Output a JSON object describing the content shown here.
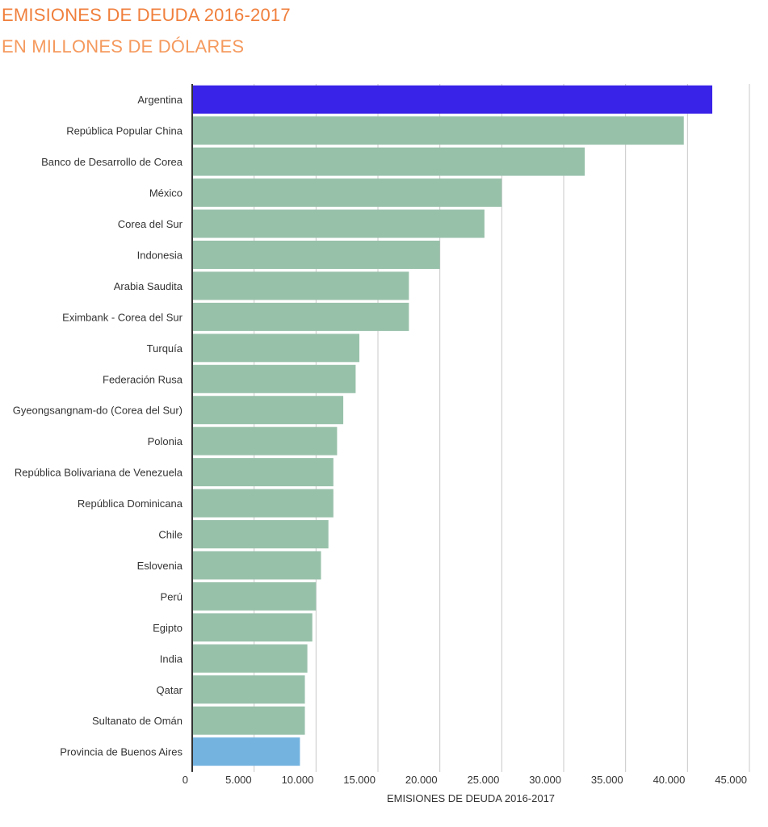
{
  "header": {
    "title": "EMISIONES DE DEUDA 2016-2017",
    "subtitle": "EN MILLONES DE DÓLARES"
  },
  "chart_data": {
    "type": "bar",
    "orientation": "horizontal",
    "title": "EMISIONES DE DEUDA 2016-2017",
    "subtitle": "EN MILLONES DE DÓLARES",
    "xlabel": "EMISIONES DE DEUDA 2016-2017",
    "ylabel": "",
    "xlim": [
      0,
      45000
    ],
    "grid": true,
    "ticks": [
      0,
      5000,
      10000,
      15000,
      20000,
      25000,
      30000,
      35000,
      40000,
      45000
    ],
    "tick_labels": [
      "0",
      "5.000",
      "10.000",
      "15.000",
      "20.000",
      "25.000",
      "30.000",
      "35.000",
      "40.000",
      "45.000"
    ],
    "categories": [
      "Argentina",
      "República Popular China",
      "Banco de Desarrollo de Corea",
      "México",
      "Corea del Sur",
      "Indonesia",
      "Arabia Saudita",
      "Eximbank - Corea del Sur",
      "Turquía",
      "Federación Rusa",
      "Gyeongsangnam-do (Corea del Sur)",
      "Polonia",
      "República Bolivariana de Venezuela",
      "República Dominicana",
      "Chile",
      "Eslovenia",
      "Perú",
      "Egipto",
      "India",
      "Qatar",
      "Sultanato de Omán",
      "Provincia de Buenos Aires"
    ],
    "values": [
      42000,
      39700,
      31700,
      25000,
      23600,
      20000,
      17500,
      17500,
      13500,
      13200,
      12200,
      11700,
      11400,
      11400,
      11000,
      10400,
      10000,
      9700,
      9300,
      9100,
      9100,
      8700
    ],
    "colors": {
      "default": "#98c1aa",
      "highlight_top": "#3a23e8",
      "highlight_bottom": "#74b3e0",
      "grid": "#c8c8c8",
      "axis": "#333333"
    },
    "highlighted": {
      "Argentina": "highlight_top",
      "Provincia de Buenos Aires": "highlight_bottom"
    }
  }
}
